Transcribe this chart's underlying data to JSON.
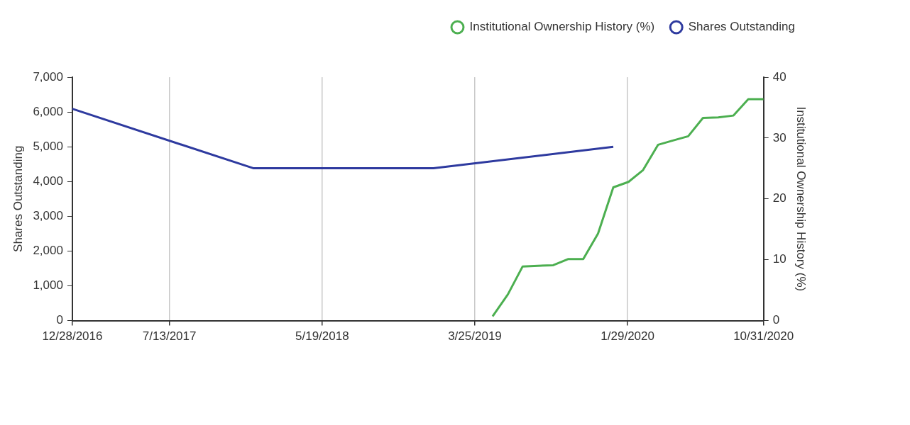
{
  "chart_data": {
    "type": "line",
    "ylabel": "Shares Outstanding",
    "y2label": "Institutional Ownership History (%)",
    "xlim": [
      "2016-12-28",
      "2020-10-31"
    ],
    "xticks": [
      {
        "value": "2016-12-28",
        "label": "12/28/2016"
      },
      {
        "value": "2017-07-13",
        "label": "7/13/2017"
      },
      {
        "value": "2018-05-19",
        "label": "5/19/2018"
      },
      {
        "value": "2019-03-25",
        "label": "3/25/2019"
      },
      {
        "value": "2020-01-29",
        "label": "1/29/2020"
      },
      {
        "value": "2020-10-31",
        "label": "10/31/2020"
      }
    ],
    "ylim": [
      0,
      7000
    ],
    "yticks": [
      {
        "value": 0,
        "label": "0"
      },
      {
        "value": 1000,
        "label": "1,000"
      },
      {
        "value": 2000,
        "label": "2,000"
      },
      {
        "value": 3000,
        "label": "3,000"
      },
      {
        "value": 4000,
        "label": "4,000"
      },
      {
        "value": 5000,
        "label": "5,000"
      },
      {
        "value": 6000,
        "label": "6,000"
      },
      {
        "value": 7000,
        "label": "7,000"
      }
    ],
    "y2lim": [
      0,
      40
    ],
    "y2ticks": [
      0,
      10,
      20,
      30,
      40
    ],
    "grid": "x",
    "legend": "top right",
    "marker": "none",
    "line_style": "solid",
    "series": [
      {
        "name": "Institutional Ownership History (%)",
        "color": "#4caf50",
        "axis": "y2",
        "x": [
          "2019-04-30",
          "2019-05-31",
          "2019-06-30",
          "2019-07-31",
          "2019-08-31",
          "2019-09-30",
          "2019-10-31",
          "2019-11-30",
          "2019-12-31",
          "2020-01-31",
          "2020-02-29",
          "2020-03-31",
          "2020-04-30",
          "2020-05-31",
          "2020-06-30",
          "2020-07-31",
          "2020-08-31",
          "2020-09-30",
          "2020-10-31"
        ],
        "values": [
          0.7,
          4.3,
          8.9,
          9.0,
          9.1,
          10.1,
          10.1,
          14.3,
          21.9,
          22.8,
          24.7,
          28.9,
          29.6,
          30.3,
          33.3,
          33.4,
          33.7,
          36.4,
          36.4
        ]
      },
      {
        "name": "Shares Outstanding",
        "color": "#2e3a9f",
        "x": [
          "2016-12-28",
          "2017-12-31",
          "2018-12-31",
          "2019-12-31"
        ],
        "values": [
          6090,
          4380,
          4380,
          5000
        ]
      }
    ]
  }
}
